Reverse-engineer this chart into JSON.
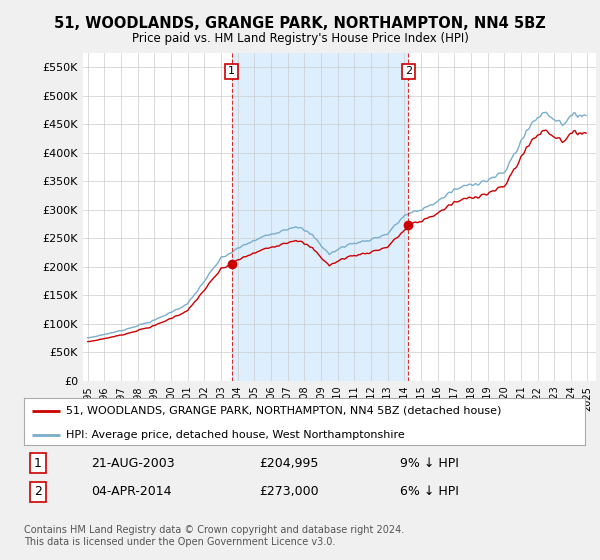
{
  "title": "51, WOODLANDS, GRANGE PARK, NORTHAMPTON, NN4 5BZ",
  "subtitle": "Price paid vs. HM Land Registry's House Price Index (HPI)",
  "legend_line1": "51, WOODLANDS, GRANGE PARK, NORTHAMPTON, NN4 5BZ (detached house)",
  "legend_line2": "HPI: Average price, detached house, West Northamptonshire",
  "footnote": "Contains HM Land Registry data © Crown copyright and database right 2024.\nThis data is licensed under the Open Government Licence v3.0.",
  "sale1_date": "21-AUG-2003",
  "sale1_price": 204995,
  "sale1_pct": "9% ↓ HPI",
  "sale1_x": 2003.635,
  "sale2_date": "04-APR-2014",
  "sale2_price": 273000,
  "sale2_pct": "6% ↓ HPI",
  "sale2_x": 2014.253,
  "price_color": "#cc0000",
  "hpi_color": "#7aaecc",
  "shade_color": "#ddeeff",
  "background_color": "#f0f0f0",
  "plot_bg_color": "#ffffff",
  "ylim_max": 575000,
  "xlim_start": 1994.7,
  "xlim_end": 2025.5
}
